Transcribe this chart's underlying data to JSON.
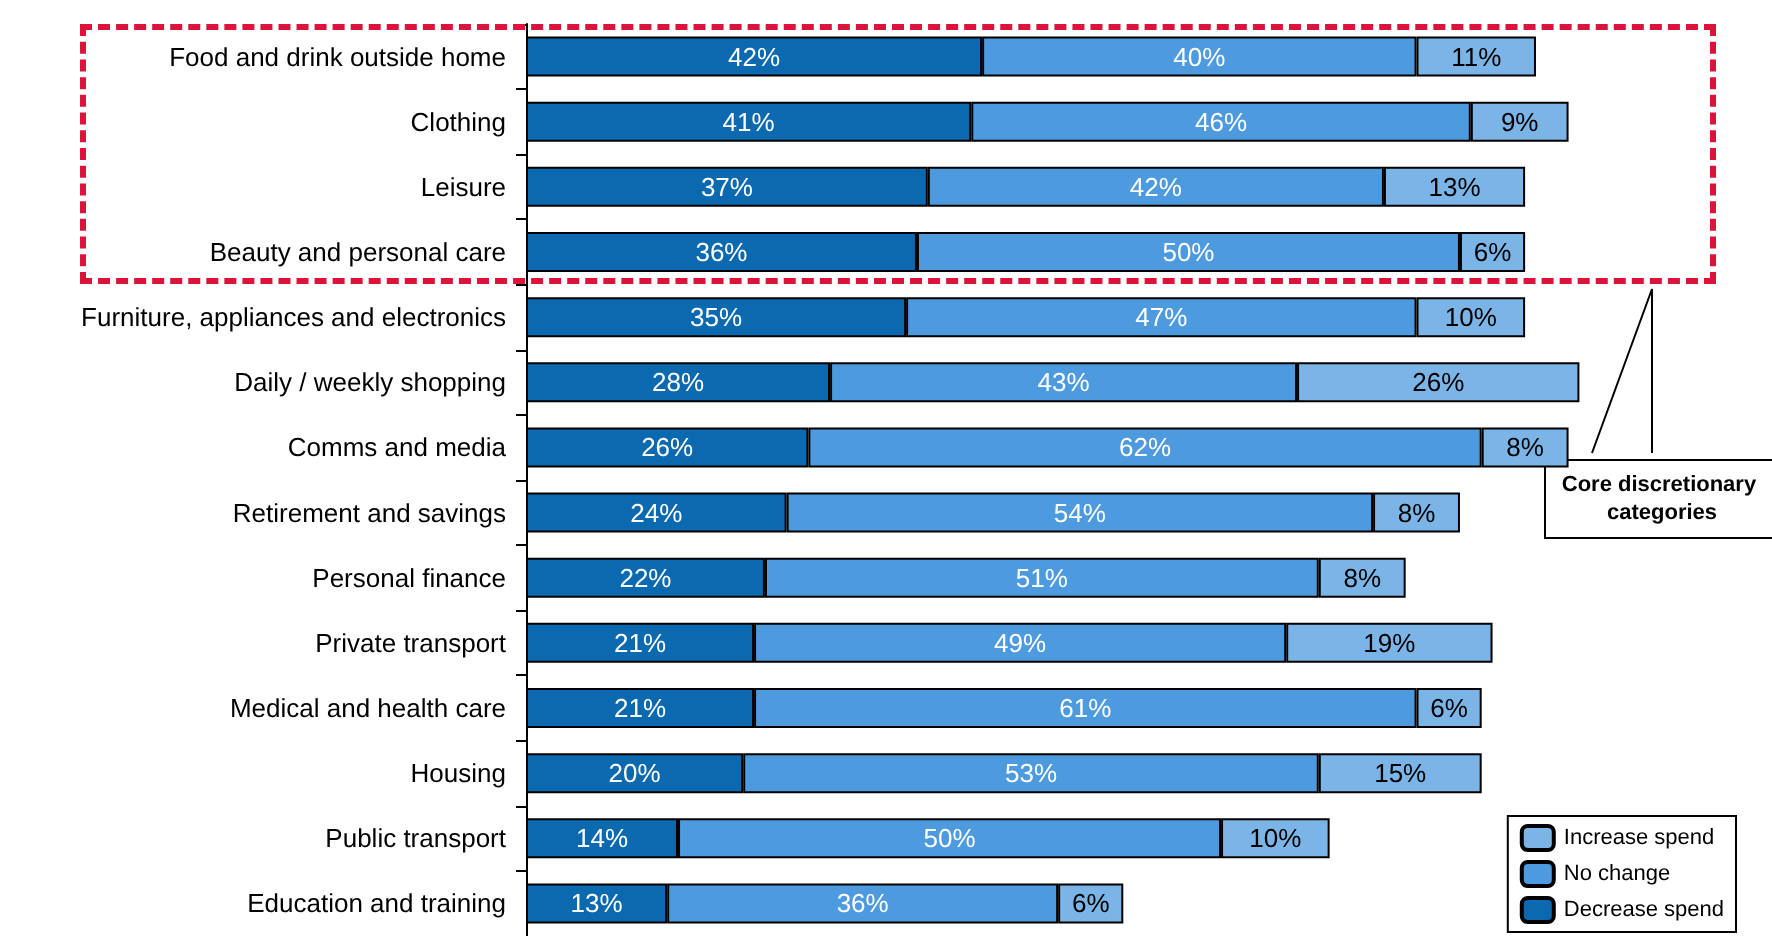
{
  "chart_data": {
    "type": "bar",
    "orientation": "horizontal",
    "stacked": true,
    "categories": [
      "Food and drink outside home",
      "Clothing",
      "Leisure",
      "Beauty and personal care",
      "Furniture, appliances and electronics",
      "Daily / weekly shopping",
      "Comms and media",
      "Retirement and savings",
      "Personal finance",
      "Private transport",
      "Medical and health care",
      "Housing",
      "Public transport",
      "Education and training"
    ],
    "series": [
      {
        "name": "Decrease spend",
        "color": "#0b69b0",
        "values": [
          42,
          41,
          37,
          36,
          35,
          28,
          26,
          24,
          22,
          21,
          21,
          20,
          14,
          13
        ],
        "value_labels": [
          "42%",
          "41%",
          "37%",
          "36%",
          "35%",
          "28%",
          "26%",
          "24%",
          "22%",
          "21%",
          "21%",
          "20%",
          "14%",
          "13%"
        ]
      },
      {
        "name": "No change",
        "color": "#4d9ade",
        "values": [
          40,
          46,
          42,
          50,
          47,
          43,
          62,
          54,
          51,
          49,
          61,
          53,
          50,
          36
        ],
        "value_labels": [
          "40%",
          "46%",
          "42%",
          "50%",
          "47%",
          "43%",
          "62%",
          "54%",
          "51%",
          "49%",
          "61%",
          "53%",
          "50%",
          "36%"
        ]
      },
      {
        "name": "Increase spend",
        "color": "#7bb4e6",
        "values": [
          11,
          9,
          13,
          6,
          10,
          26,
          8,
          8,
          8,
          19,
          6,
          15,
          10,
          6
        ],
        "value_labels": [
          "11%",
          "9%",
          "13%",
          "6%",
          "10%",
          "26%",
          "8%",
          "8%",
          "8%",
          "19%",
          "6%",
          "15%",
          "10%",
          "6%"
        ]
      }
    ],
    "annotations": [
      "Core discretionary categories"
    ],
    "legend": "bottom right"
  }
}
